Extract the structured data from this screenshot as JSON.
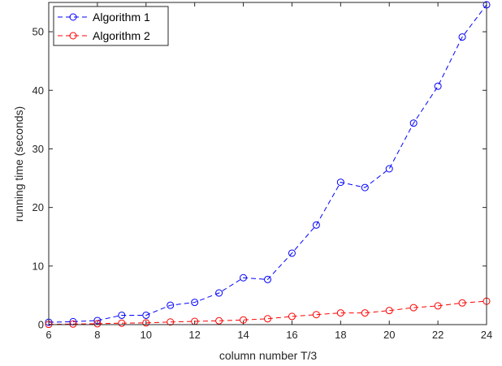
{
  "chart_data": {
    "type": "line",
    "title": "",
    "xlabel": "column number T/3",
    "ylabel": "running time (seconds)",
    "xlim": [
      6,
      24
    ],
    "ylim": [
      0,
      55
    ],
    "xticks": [
      6,
      8,
      10,
      12,
      14,
      16,
      18,
      20,
      22,
      24
    ],
    "yticks": [
      0,
      10,
      20,
      30,
      40,
      50
    ],
    "grid": false,
    "legend_position": "top-left",
    "x": [
      6,
      7,
      8,
      9,
      10,
      11,
      12,
      13,
      14,
      15,
      16,
      17,
      18,
      19,
      20,
      21,
      22,
      23,
      24
    ],
    "series": [
      {
        "name": "Algorithm 1",
        "color": "#0000ff",
        "line_style": "dashed",
        "marker": "circle",
        "values": [
          0.4,
          0.5,
          0.7,
          1.6,
          1.6,
          3.3,
          3.8,
          5.4,
          8.0,
          7.7,
          12.2,
          17.0,
          24.3,
          23.4,
          26.6,
          34.4,
          40.7,
          49.1,
          54.6
        ]
      },
      {
        "name": "Algorithm 2",
        "color": "#ff0000",
        "line_style": "dashed",
        "marker": "circle",
        "values": [
          0.05,
          0.1,
          0.15,
          0.25,
          0.3,
          0.45,
          0.55,
          0.65,
          0.8,
          1.0,
          1.4,
          1.7,
          2.0,
          2.0,
          2.4,
          2.9,
          3.2,
          3.7,
          4.0
        ]
      }
    ]
  }
}
